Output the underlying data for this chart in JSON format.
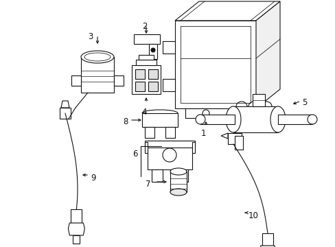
{
  "bg_color": "#ffffff",
  "line_color": "#111111",
  "lw": 0.8,
  "fs": 8.5,
  "figsize": [
    4.89,
    3.6
  ],
  "dpi": 100
}
